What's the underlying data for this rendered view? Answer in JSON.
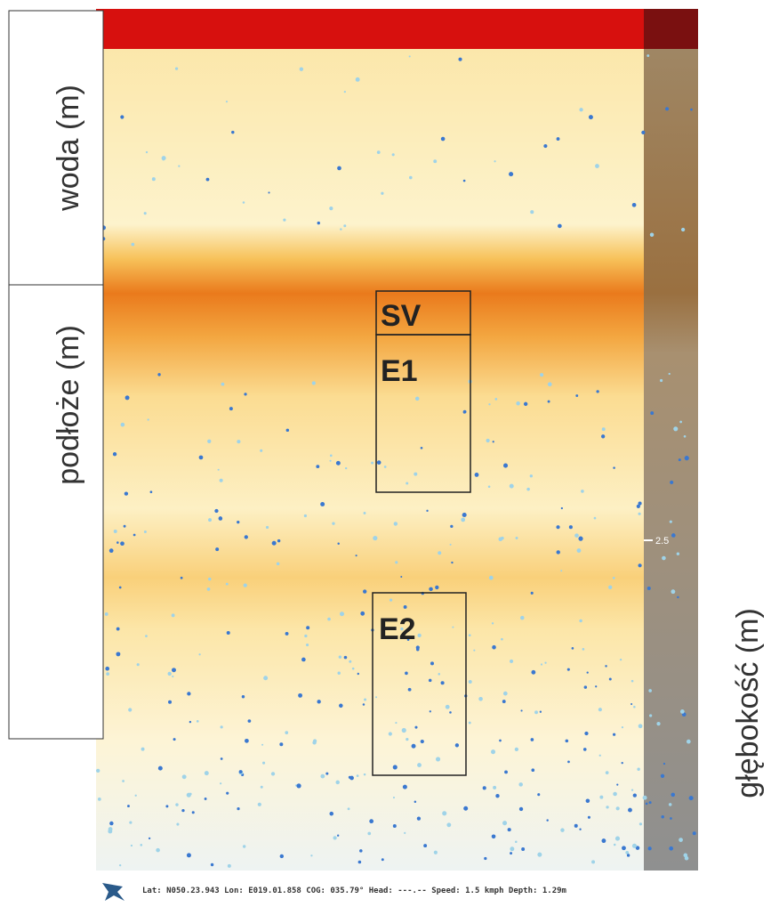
{
  "labels": {
    "water": "woda (m)",
    "substrate": "podłoże (m)",
    "depth": "głębokość (m)"
  },
  "boxes": [
    {
      "label": "SV"
    },
    {
      "label": "E1"
    },
    {
      "label": "E2"
    }
  ],
  "scale": {
    "tick": "2.5"
  },
  "status": [
    {
      "key": "Lat:",
      "value": "N050.23.943"
    },
    {
      "key": "Lon:",
      "value": "E019.01.858"
    },
    {
      "key": "COG:",
      "value": "035.79°"
    },
    {
      "key": "Head:",
      "value": "---.--"
    },
    {
      "key": "Speed:",
      "value": "1.5 kmph"
    },
    {
      "key": "Depth:",
      "value": "1.29m"
    }
  ]
}
